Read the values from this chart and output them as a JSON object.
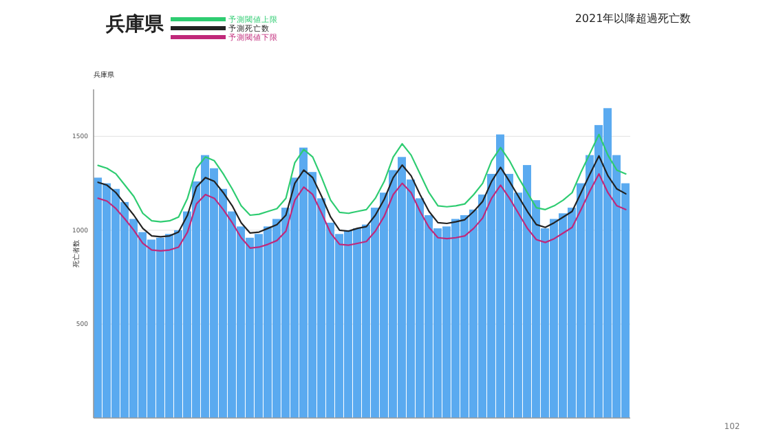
{
  "chart_data": {
    "type": "bar",
    "title": "兵庫県",
    "subtitle": "兵庫県",
    "ylabel": "死亡者数",
    "annotations": [
      "2021年以降超過死亡数",
      "102"
    ],
    "categories": [
      null,
      null,
      null,
      null,
      null,
      null,
      null,
      null,
      null,
      null,
      null,
      null,
      null,
      null,
      null,
      null,
      null,
      null,
      null,
      null,
      null,
      null,
      null,
      null,
      null,
      null,
      null,
      null,
      null,
      null,
      null,
      null,
      null,
      null,
      null,
      null,
      null,
      null,
      null,
      null,
      null,
      null,
      null,
      null,
      null,
      null,
      null,
      null,
      null,
      null,
      null,
      null,
      null,
      null,
      null,
      null,
      null,
      null,
      null,
      null
    ],
    "ylim": [
      0,
      1750
    ],
    "yticks": [
      500,
      1000,
      1500
    ],
    "grid": "y",
    "legend": "top",
    "series": [
      {
        "color": "#5aaaf0",
        "values": [
          1280,
          1250,
          1220,
          1150,
          1060,
          990,
          950,
          960,
          980,
          1000,
          1100,
          1260,
          1400,
          1330,
          1220,
          1100,
          1020,
          960,
          980,
          1020,
          1060,
          1120,
          1280,
          1440,
          1310,
          1170,
          1040,
          980,
          1000,
          1010,
          1030,
          1120,
          1200,
          1320,
          1390,
          1270,
          1170,
          1080,
          1010,
          1020,
          1060,
          1080,
          1110,
          1190,
          1300,
          1510,
          1300,
          1200,
          1347,
          1160,
          1010,
          1060,
          1090,
          1120,
          1250,
          1400,
          1560,
          1650,
          1400,
          1250
        ]
      },
      {
        "type": "line",
        "name": "予測閾値上限",
        "color": "#2ecc71",
        "values": [
          1345,
          1330,
          1300,
          1240,
          1180,
          1090,
          1050,
          1045,
          1050,
          1070,
          1170,
          1330,
          1390,
          1370,
          1300,
          1220,
          1130,
          1080,
          1085,
          1100,
          1115,
          1170,
          1360,
          1430,
          1390,
          1280,
          1160,
          1095,
          1090,
          1100,
          1110,
          1170,
          1260,
          1390,
          1460,
          1400,
          1300,
          1200,
          1130,
          1125,
          1130,
          1140,
          1190,
          1250,
          1370,
          1440,
          1370,
          1280,
          1200,
          1120,
          1110,
          1130,
          1160,
          1200,
          1310,
          1410,
          1510,
          1400,
          1320,
          1300
        ]
      },
      {
        "type": "line",
        "name": "予測死亡数",
        "color": "#222222",
        "values": [
          1255,
          1240,
          1200,
          1140,
          1080,
          1010,
          970,
          965,
          970,
          990,
          1080,
          1230,
          1280,
          1260,
          1200,
          1130,
          1040,
          985,
          990,
          1010,
          1030,
          1080,
          1250,
          1320,
          1280,
          1180,
          1070,
          1000,
          995,
          1010,
          1019,
          1080,
          1165,
          1280,
          1347,
          1290,
          1190,
          1100,
          1040,
          1036,
          1045,
          1056,
          1100,
          1153,
          1260,
          1335,
          1260,
          1180,
          1100,
          1030,
          1015,
          1040,
          1070,
          1100,
          1200,
          1300,
          1396,
          1290,
          1220,
          1194
        ]
      },
      {
        "type": "line",
        "name": "予測閾値下限",
        "color": "#c0287a",
        "values": [
          1170,
          1155,
          1115,
          1060,
          1000,
          930,
          895,
          890,
          895,
          910,
          990,
          1140,
          1190,
          1170,
          1110,
          1040,
          960,
          905,
          910,
          925,
          945,
          995,
          1160,
          1230,
          1190,
          1090,
          985,
          925,
          920,
          930,
          940,
          995,
          1075,
          1190,
          1250,
          1200,
          1100,
          1015,
          960,
          955,
          960,
          970,
          1010,
          1065,
          1170,
          1240,
          1170,
          1090,
          1010,
          950,
          935,
          955,
          985,
          1015,
          1110,
          1210,
          1300,
          1200,
          1130,
          1110
        ]
      }
    ]
  }
}
